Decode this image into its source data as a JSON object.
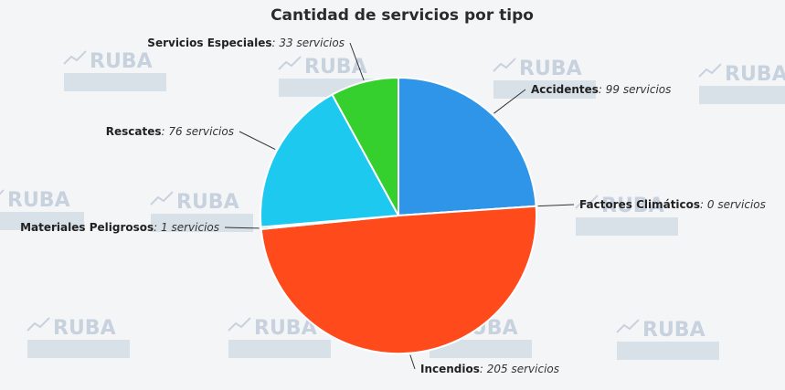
{
  "chart_data": {
    "type": "pie",
    "title": "Cantidad de servicios por tipo",
    "unit_suffix": "servicios",
    "watermark": "RUBA",
    "slices": [
      {
        "name": "Accidentes",
        "value": 99,
        "color": "#2f95e8"
      },
      {
        "name": "Factores Climáticos",
        "value": 0,
        "color": "#6b3fa0"
      },
      {
        "name": "Incendios",
        "value": 205,
        "color": "#ff4a1c"
      },
      {
        "name": "Materiales Peligrosos",
        "value": 1,
        "color": "#1b6fb8"
      },
      {
        "name": "Rescates",
        "value": 76,
        "color": "#1ec9ef"
      },
      {
        "name": "Servicios Especiales",
        "value": 33,
        "color": "#35d02e"
      }
    ]
  }
}
